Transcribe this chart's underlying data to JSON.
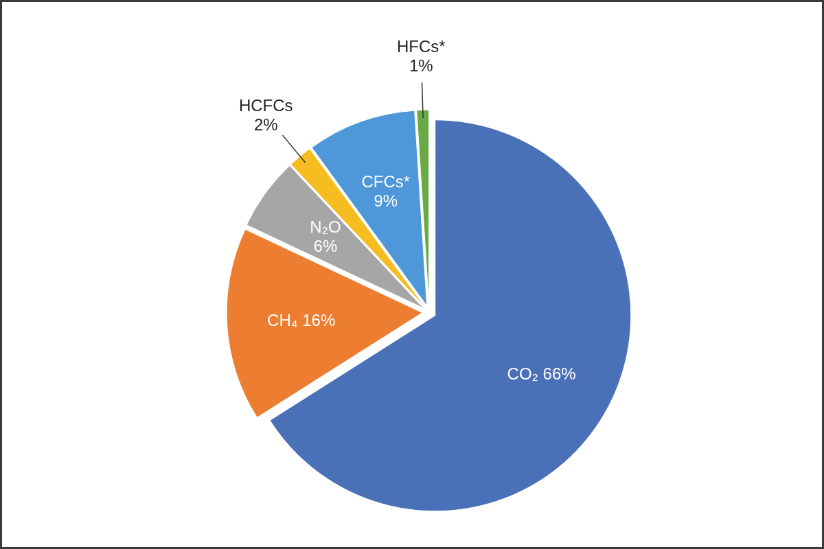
{
  "chart_data": {
    "type": "pie",
    "categories": [
      "CO₂",
      "CH₄",
      "N₂O",
      "HCFCs",
      "CFCs*",
      "HFCs*"
    ],
    "values": [
      66,
      16,
      6,
      2,
      9,
      1
    ],
    "value_labels": [
      "66%",
      "16%",
      "6%",
      "2%",
      "9%",
      "1%"
    ],
    "colors": [
      "#4a70b8",
      "#ed7d31",
      "#a6a6a6",
      "#f5bd1f",
      "#4e97d8",
      "#6aaa45"
    ]
  }
}
